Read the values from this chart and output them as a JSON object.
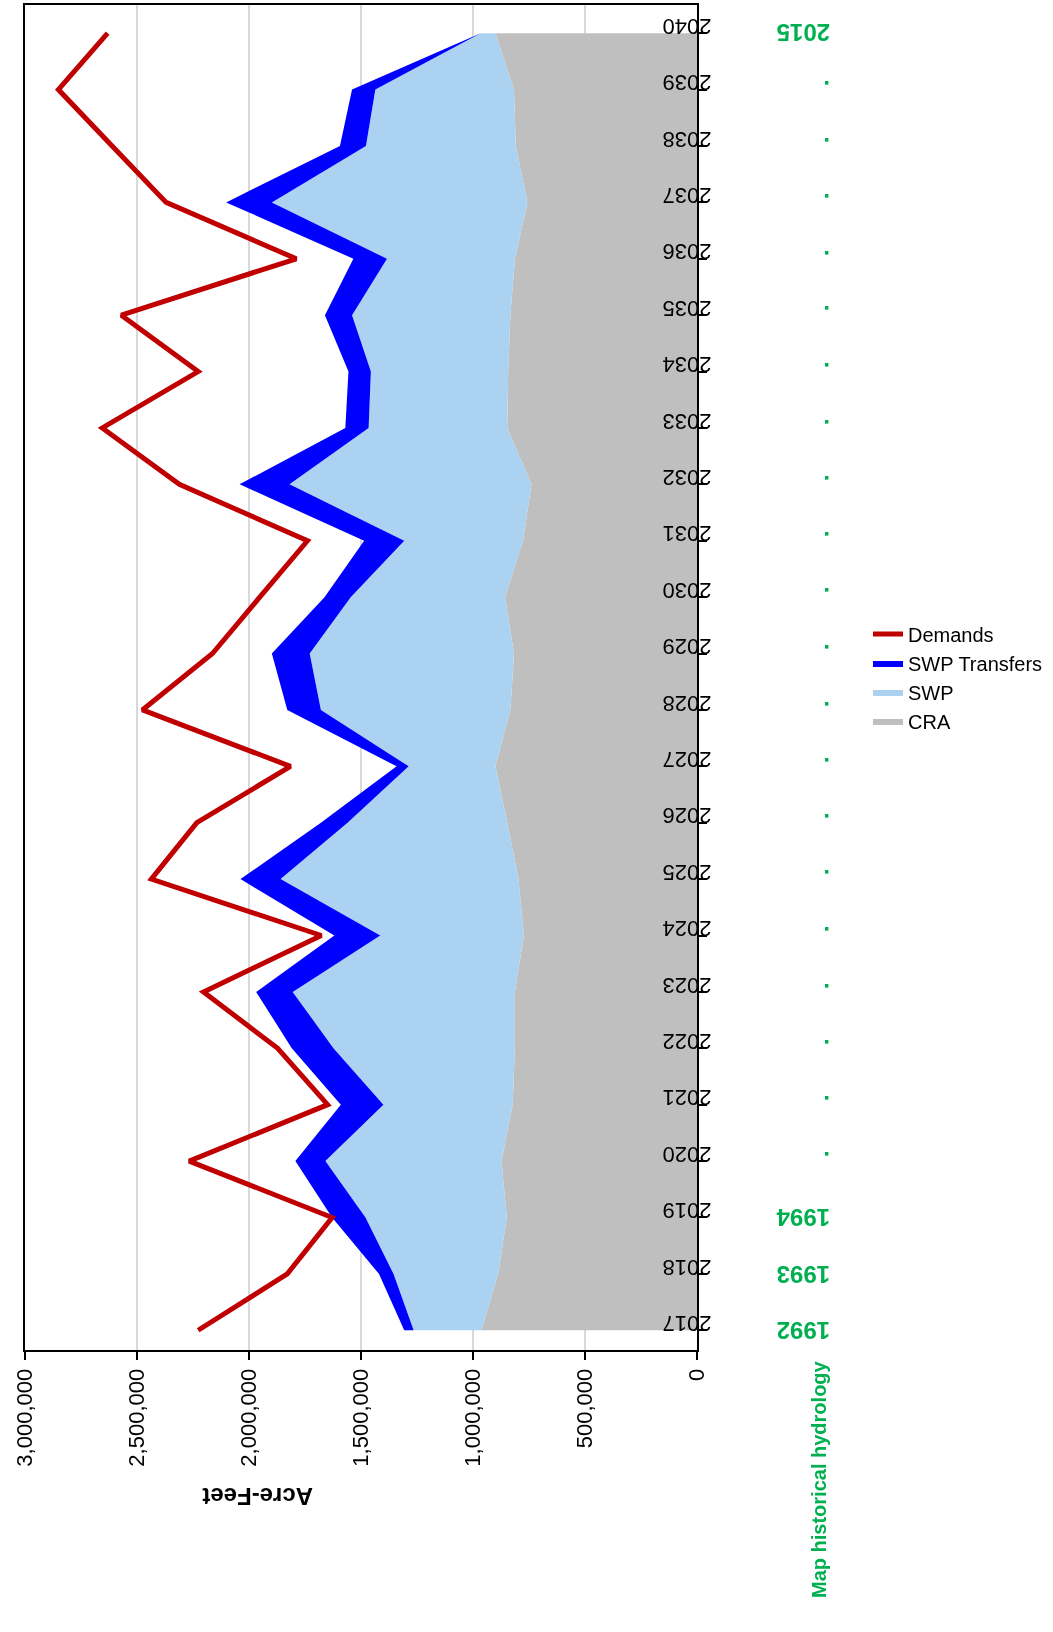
{
  "chart_data": {
    "type": "area",
    "stacked": true,
    "orientation": "horizontal",
    "xlabel": "Acre-Feet",
    "categories": [
      "2040",
      "2039",
      "2038",
      "2037",
      "2036",
      "2035",
      "2034",
      "2033",
      "2032",
      "2031",
      "2030",
      "2029",
      "2028",
      "2027",
      "2026",
      "2025",
      "2024",
      "2023",
      "2022",
      "2021",
      "2020",
      "2019",
      "2018",
      "2017"
    ],
    "series": [
      {
        "name": "CRA",
        "color": "#bfbfbf",
        "values": [
          900000,
          817000,
          809000,
          757000,
          813000,
          833000,
          843000,
          847000,
          739000,
          777000,
          857000,
          817000,
          833000,
          900000,
          847000,
          797000,
          773000,
          813000,
          813000,
          823000,
          873000,
          849000,
          888000,
          962000
        ]
      },
      {
        "name": "SWP",
        "color": "#abd3f1",
        "values": [
          66000,
          619000,
          669000,
          1141000,
          571000,
          707000,
          613000,
          619000,
          1080000,
          530000,
          689000,
          912000,
          846000,
          387000,
          713000,
          1062000,
          641000,
          992000,
          810000,
          577000,
          786000,
          631000,
          467000,
          303000
        ]
      },
      {
        "name": "SWP Transfers",
        "color": "#0000ff",
        "values": [
          0,
          104000,
          116000,
          204000,
          150000,
          121000,
          100000,
          104000,
          223000,
          179000,
          117000,
          169000,
          150000,
          54000,
          119000,
          179000,
          205000,
          163000,
          186000,
          190000,
          134000,
          149000,
          65000,
          42000
        ]
      },
      {
        "name": "Demands",
        "type": "line",
        "color": "#c00000",
        "values": [
          2631000,
          2851000,
          2611000,
          2370000,
          1789000,
          2570000,
          2227000,
          2655000,
          2311000,
          1739000,
          1952000,
          2163000,
          2476000,
          1815000,
          2233000,
          2436000,
          1677000,
          2203000,
          1872000,
          1649000,
          2267000,
          1629000,
          1829000,
          2227000
        ]
      }
    ],
    "xlim": [
      3000000,
      0
    ],
    "xticks": [
      {
        "value": 3000000,
        "label": "3,000,000"
      },
      {
        "value": 2500000,
        "label": "2,500,000"
      },
      {
        "value": 2000000,
        "label": "2,000,000"
      },
      {
        "value": 1500000,
        "label": "1,500,000"
      },
      {
        "value": 1000000,
        "label": "1,000,000"
      },
      {
        "value": 500000,
        "label": "500,000"
      },
      0
    ],
    "grid": "x",
    "legend": "right",
    "annotations": [
      "Map historical hydrology",
      "2015",
      ".",
      ".",
      ".",
      ".",
      ".",
      ".",
      ".",
      ".",
      ".",
      ".",
      ".",
      ".",
      ".",
      ".",
      ".",
      ".",
      ".",
      ".",
      ".",
      ".",
      "1994",
      "1993",
      "1992"
    ]
  }
}
